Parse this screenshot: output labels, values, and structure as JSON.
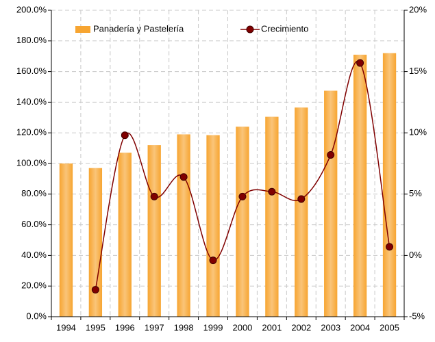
{
  "chart_data": {
    "type": "bar",
    "categories": [
      "1994",
      "1995",
      "1996",
      "1997",
      "1998",
      "1999",
      "2000",
      "2001",
      "2002",
      "2003",
      "2004",
      "2005"
    ],
    "series": [
      {
        "name": "Panadería y Pastelería",
        "type": "bar",
        "color": "#F7A531",
        "axis": "y",
        "values": [
          100,
          97,
          107,
          112,
          119,
          118.5,
          124,
          130.5,
          136.5,
          147.5,
          171,
          172
        ]
      },
      {
        "name": "Crecimiento",
        "type": "line",
        "color": "#800000",
        "axis": "y2",
        "values": [
          null,
          -2.8,
          9.8,
          4.8,
          6.4,
          -0.4,
          4.8,
          5.2,
          4.6,
          8.2,
          15.7,
          0.7
        ]
      }
    ],
    "ylim": [
      0,
      200
    ],
    "yticks": [
      {
        "value": 0,
        "label": "0.0%"
      },
      {
        "value": 20,
        "label": "20.0%"
      },
      {
        "value": 40,
        "label": "40.0%"
      },
      {
        "value": 60,
        "label": "60.0%"
      },
      {
        "value": 80,
        "label": "80.0%"
      },
      {
        "value": 100,
        "label": "100.0%"
      },
      {
        "value": 120,
        "label": "120.0%"
      },
      {
        "value": 140,
        "label": "140.0%"
      },
      {
        "value": 160,
        "label": "160.0%"
      },
      {
        "value": 180,
        "label": "180.0%"
      },
      {
        "value": 200,
        "label": "200.0%"
      }
    ],
    "y2lim": [
      -5,
      20
    ],
    "y2ticks": [
      {
        "value": -5,
        "label": "-5%"
      },
      {
        "value": 0,
        "label": "0%"
      },
      {
        "value": 5,
        "label": "5%"
      },
      {
        "value": 10,
        "label": "10%"
      },
      {
        "value": 15,
        "label": "15%"
      },
      {
        "value": 20,
        "label": "20%"
      }
    ],
    "grid": true,
    "legend": "top-left"
  }
}
